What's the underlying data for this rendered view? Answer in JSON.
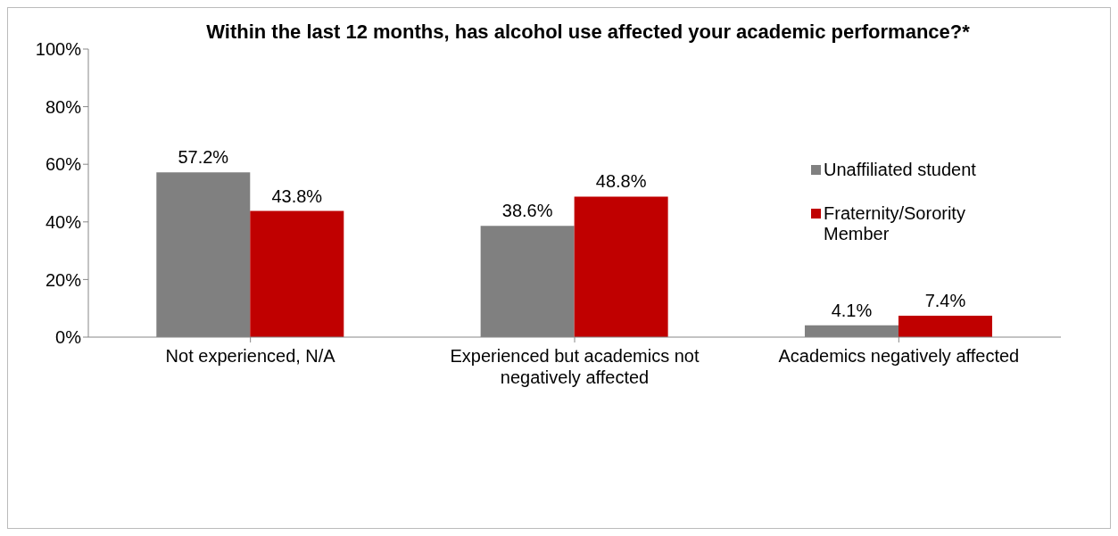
{
  "chart_data": {
    "type": "bar",
    "title": "Within the last 12 months, has alcohol use affected your academic performance?*",
    "categories": [
      "Not experienced, N/A",
      "Experienced but academics not negatively affected",
      "Academics negatively affected"
    ],
    "series": [
      {
        "name": "Unaffiliated student",
        "color": "#808080",
        "values": [
          57.2,
          38.6,
          4.1
        ],
        "value_labels": [
          "57.2%",
          "38.6%",
          "4.1%"
        ]
      },
      {
        "name": "Fraternity/Sorority Member",
        "color": "#c00000",
        "values": [
          43.8,
          48.8,
          7.4
        ],
        "value_labels": [
          "43.8%",
          "48.8%",
          "7.4%"
        ]
      }
    ],
    "ylim": [
      0,
      100
    ],
    "yticks": [
      {
        "value": 0,
        "label": "0%"
      },
      {
        "value": 20,
        "label": "20%"
      },
      {
        "value": 40,
        "label": "40%"
      },
      {
        "value": 60,
        "label": "60%"
      },
      {
        "value": 80,
        "label": "80%"
      },
      {
        "value": 100,
        "label": "100%"
      }
    ],
    "grid": false,
    "legend": "right"
  }
}
